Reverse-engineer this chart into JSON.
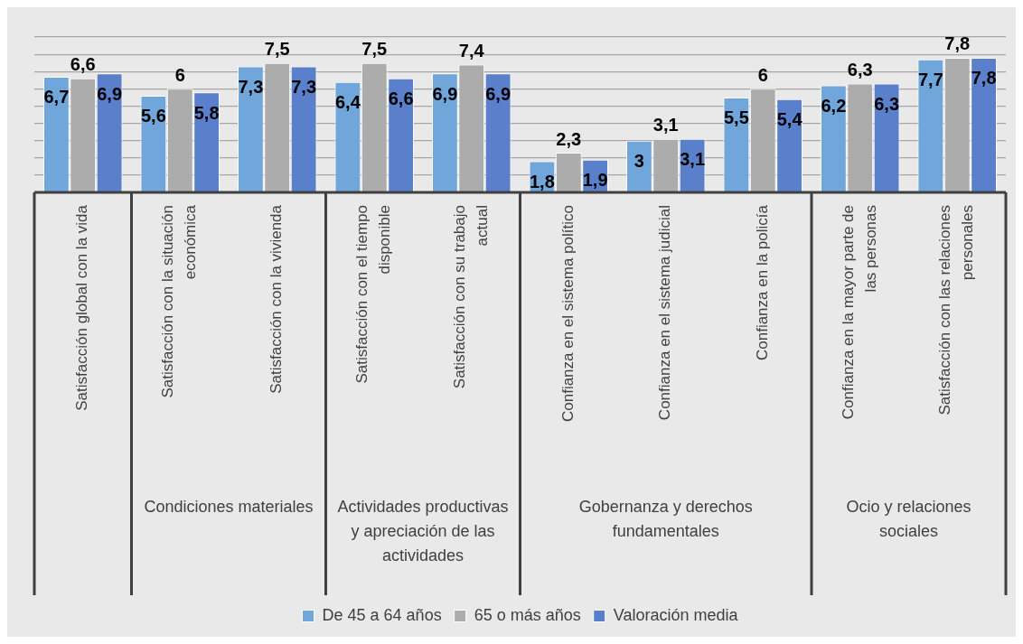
{
  "chart_data": {
    "type": "bar",
    "categories": [
      "Satisfacción global con la vida",
      "Satisfacción con la situación económica",
      "Satisfacción con la vivienda",
      "Satisfacción con el tiempo disponible",
      "Satisfacción con su trabajo actual",
      "Confianza en el sistema político",
      "Confianza en el sistema judicial",
      "Confianza en la policía",
      "Confianza en la mayor parte de las personas",
      "Satisfacción con las relaciones personales"
    ],
    "series": [
      {
        "name": "De 45 a 64 años",
        "color": "#70a6da",
        "values": [
          6.7,
          5.6,
          7.3,
          6.4,
          6.9,
          1.8,
          3,
          5.5,
          6.2,
          7.7
        ],
        "value_labels": [
          "6,7",
          "5,6",
          "7,3",
          "6,4",
          "6,9",
          "1,8",
          "3",
          "5,5",
          "6,2",
          "7,7"
        ]
      },
      {
        "name": "65 o más años",
        "color": "#acacac",
        "values": [
          6.6,
          6,
          7.5,
          7.5,
          7.4,
          2.3,
          3.1,
          6,
          6.3,
          7.8
        ],
        "value_labels": [
          "6,6",
          "6",
          "7,5",
          "7,5",
          "7,4",
          "2,3",
          "3,1",
          "6",
          "6,3",
          "7,8"
        ]
      },
      {
        "name": "Valoración media",
        "color": "#5b80cb",
        "values": [
          6.9,
          5.8,
          7.3,
          6.6,
          6.9,
          1.9,
          3.1,
          5.4,
          6.3,
          7.8
        ],
        "value_labels": [
          "6,9",
          "5,8",
          "7,3",
          "6,6",
          "6,9",
          "1,9",
          "3,1",
          "5,4",
          "6,3",
          "7,8"
        ]
      }
    ],
    "annotations": [
      "Condiciones materiales",
      "Actividades productivas y apreciación de las actividades",
      "Gobernanza y derechos fundamentales",
      "Ocio y relaciones sociales"
    ],
    "ylim": [
      0,
      9
    ],
    "grid": "y",
    "legend": "bottom",
    "tick_labels": "x"
  }
}
